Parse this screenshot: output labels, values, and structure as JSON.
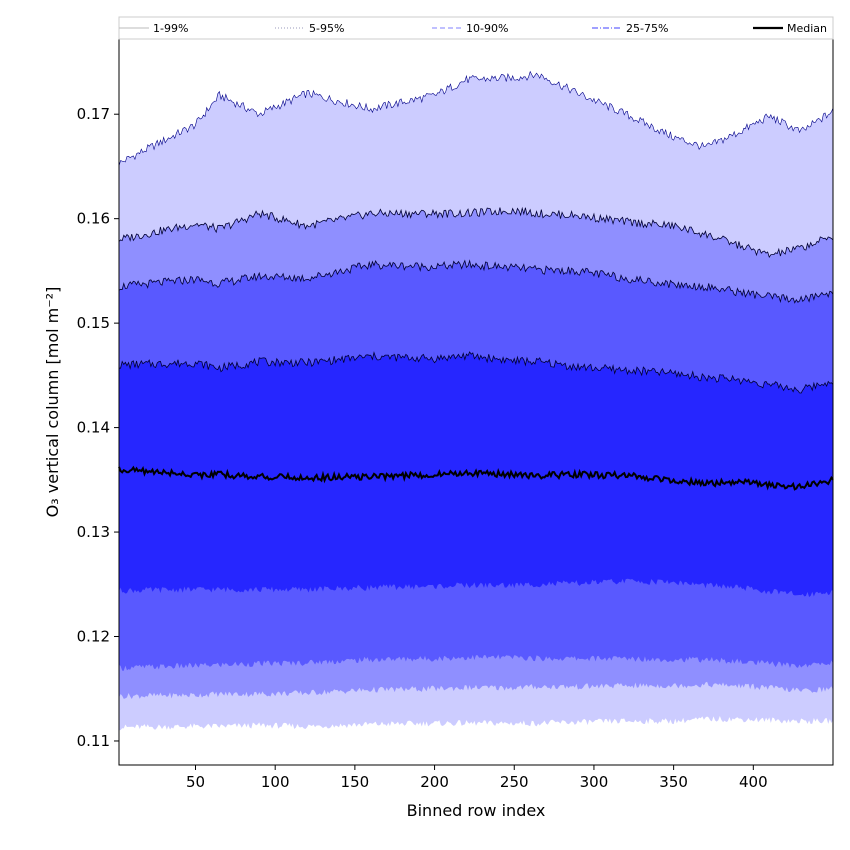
{
  "chart_data": {
    "type": "area",
    "xlabel": "Binned row index",
    "ylabel": "O₃ vertical column [mol m⁻²]",
    "xlim": [
      2,
      450
    ],
    "ylim": [
      0.1077,
      0.1772
    ],
    "x_ticks": [
      50,
      100,
      150,
      200,
      250,
      300,
      350,
      400
    ],
    "y_ticks": [
      0.11,
      0.12,
      0.13,
      0.14,
      0.15,
      0.16,
      0.17
    ],
    "y_tick_labels": [
      "0.11",
      "0.12",
      "0.13",
      "0.14",
      "0.15",
      "0.16",
      "0.17"
    ],
    "grid": false,
    "legend_position": "top, above plot",
    "x_knots": [
      2,
      50,
      65,
      90,
      120,
      160,
      200,
      220,
      250,
      265,
      290,
      320,
      350,
      370,
      390,
      410,
      430,
      450
    ],
    "bands": [
      {
        "name": "1-99%",
        "color": "#ccccff",
        "line_color": "#aaaaaa",
        "lower": [
          0.1113,
          0.1114,
          0.1114,
          0.1115,
          0.1114,
          0.1116,
          0.1117,
          0.1117,
          0.1117,
          0.1117,
          0.1118,
          0.1119,
          0.1119,
          0.1121,
          0.1121,
          0.112,
          0.1119,
          0.1119
        ],
        "upper": [
          0.1653,
          0.169,
          0.1718,
          0.17,
          0.172,
          0.1705,
          0.1718,
          0.1733,
          0.1735,
          0.1738,
          0.172,
          0.17,
          0.1678,
          0.1668,
          0.1682,
          0.1698,
          0.1683,
          0.1703
        ]
      },
      {
        "name": "5-95%",
        "color": "#8f8fff",
        "line_color": "#8888aa",
        "lower": [
          0.1143,
          0.1144,
          0.1145,
          0.1145,
          0.1146,
          0.1149,
          0.115,
          0.1151,
          0.1151,
          0.1152,
          0.1152,
          0.1153,
          0.1153,
          0.1154,
          0.1153,
          0.1151,
          0.1148,
          0.115
        ],
        "upper": [
          0.158,
          0.1595,
          0.159,
          0.1605,
          0.1593,
          0.1605,
          0.1605,
          0.1605,
          0.1608,
          0.1605,
          0.1603,
          0.1597,
          0.1593,
          0.1585,
          0.1575,
          0.1565,
          0.1572,
          0.1583
        ]
      },
      {
        "name": "10-90%",
        "color": "#5959ff",
        "line_color": "#6060ff",
        "lower": [
          0.117,
          0.1172,
          0.1173,
          0.1174,
          0.1175,
          0.1178,
          0.1179,
          0.118,
          0.118,
          0.1179,
          0.1179,
          0.1179,
          0.1178,
          0.1178,
          0.1176,
          0.1174,
          0.1172,
          0.1175
        ],
        "upper": [
          0.1535,
          0.1542,
          0.1538,
          0.1545,
          0.1543,
          0.1556,
          0.1554,
          0.1556,
          0.1553,
          0.1551,
          0.155,
          0.1543,
          0.1537,
          0.1535,
          0.153,
          0.1525,
          0.1522,
          0.153
        ]
      },
      {
        "name": "25-75%",
        "color": "#2626ff",
        "line_color": "#2020c0",
        "lower": [
          0.1244,
          0.1245,
          0.1245,
          0.1245,
          0.1245,
          0.1247,
          0.1248,
          0.1249,
          0.1249,
          0.125,
          0.1251,
          0.1253,
          0.1252,
          0.1249,
          0.1247,
          0.1243,
          0.124,
          0.1243
        ],
        "upper": [
          0.146,
          0.1462,
          0.1457,
          0.1463,
          0.1462,
          0.1468,
          0.1466,
          0.1469,
          0.1464,
          0.1463,
          0.1458,
          0.1455,
          0.1452,
          0.1448,
          0.1446,
          0.1441,
          0.1436,
          0.1445
        ]
      }
    ],
    "median": {
      "name": "Median",
      "color": "#000000",
      "values": [
        0.136,
        0.1355,
        0.1355,
        0.1353,
        0.1352,
        0.1353,
        0.1355,
        0.1357,
        0.1355,
        0.1354,
        0.1355,
        0.1354,
        0.135,
        0.1346,
        0.1348,
        0.1345,
        0.1343,
        0.135
      ]
    },
    "legend": [
      {
        "label": "1-99%",
        "color": "#bbbbbb",
        "style": "solid"
      },
      {
        "label": "5-95%",
        "color": "#9999bb",
        "style": "dotted"
      },
      {
        "label": "10-90%",
        "color": "#8080ff",
        "style": "dashed"
      },
      {
        "label": "25-75%",
        "color": "#4040ff",
        "style": "dashdot"
      },
      {
        "label": "Median",
        "color": "#000000",
        "style": "solid-thick"
      }
    ]
  }
}
